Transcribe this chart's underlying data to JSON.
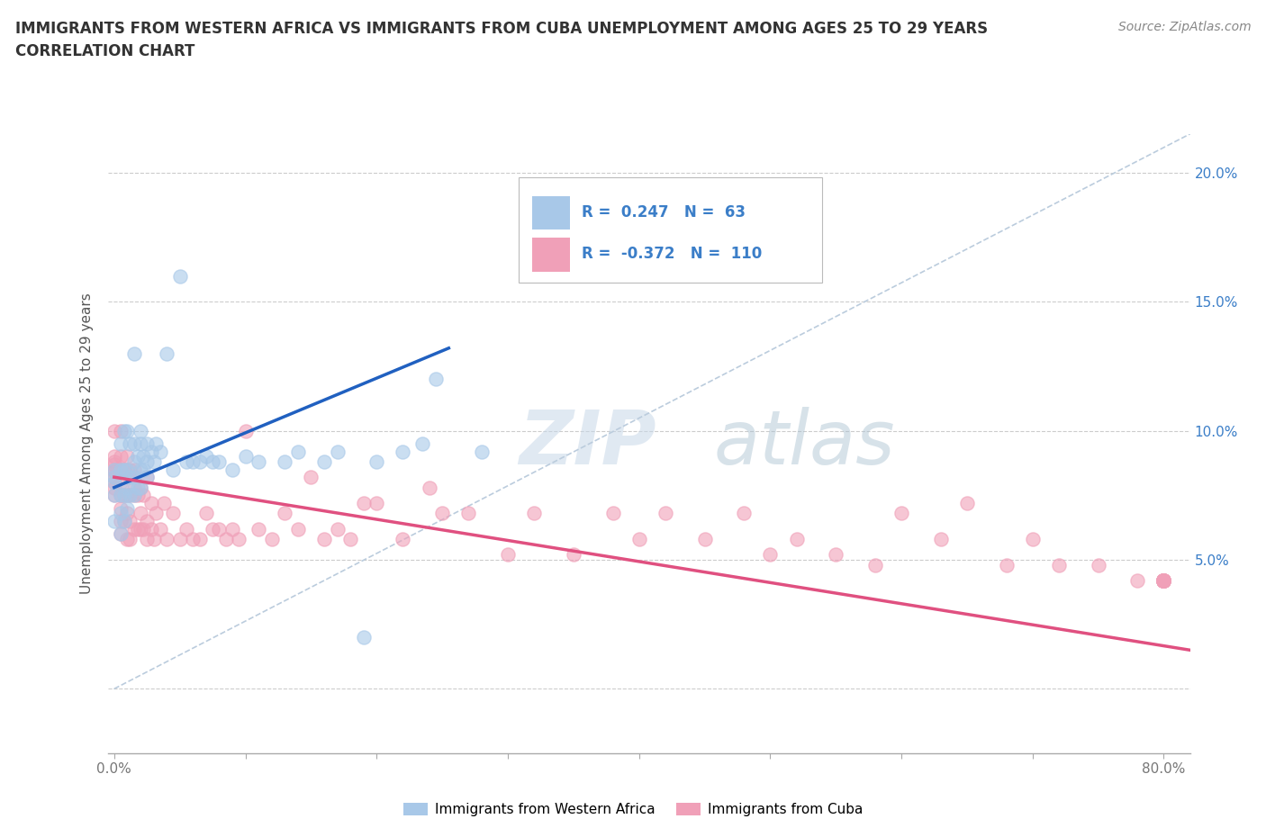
{
  "title_line1": "IMMIGRANTS FROM WESTERN AFRICA VS IMMIGRANTS FROM CUBA UNEMPLOYMENT AMONG AGES 25 TO 29 YEARS",
  "title_line2": "CORRELATION CHART",
  "source_text": "Source: ZipAtlas.com",
  "ylabel": "Unemployment Among Ages 25 to 29 years",
  "xlim": [
    -0.005,
    0.82
  ],
  "ylim": [
    -0.025,
    0.215
  ],
  "yticks": [
    0.0,
    0.05,
    0.1,
    0.15,
    0.2
  ],
  "ytick_labels_left": [
    "",
    "",
    "",
    "",
    ""
  ],
  "ytick_labels_right": [
    "",
    "5.0%",
    "10.0%",
    "15.0%",
    "20.0%"
  ],
  "xticks": [
    0.0,
    0.1,
    0.2,
    0.3,
    0.4,
    0.5,
    0.6,
    0.7,
    0.8
  ],
  "xtick_labels": [
    "0.0%",
    "",
    "",
    "",
    "",
    "",
    "",
    "",
    "80.0%"
  ],
  "blue_color": "#A8C8E8",
  "pink_color": "#F0A0B8",
  "blue_line_color": "#2060C0",
  "pink_line_color": "#E05080",
  "dashed_line_color": "#BBCCDD",
  "legend_R_blue": "0.247",
  "legend_N_blue": "63",
  "legend_R_pink": "-0.372",
  "legend_N_pink": "110",
  "legend_label_blue": "Immigrants from Western Africa",
  "legend_label_pink": "Immigrants from Cuba",
  "watermark_zip": "ZIP",
  "watermark_atlas": "atlas",
  "blue_trend_x": [
    0.0,
    0.255
  ],
  "blue_trend_y": [
    0.078,
    0.132
  ],
  "pink_trend_x": [
    0.0,
    0.82
  ],
  "pink_trend_y": [
    0.082,
    0.015
  ],
  "dashed_line_x": [
    0.0,
    0.82
  ],
  "dashed_line_y": [
    0.0,
    0.215
  ],
  "blue_scatter_x": [
    0.0,
    0.0,
    0.0,
    0.0,
    0.0,
    0.005,
    0.005,
    0.005,
    0.005,
    0.005,
    0.008,
    0.008,
    0.008,
    0.008,
    0.01,
    0.01,
    0.01,
    0.01,
    0.012,
    0.012,
    0.012,
    0.015,
    0.015,
    0.015,
    0.015,
    0.015,
    0.018,
    0.018,
    0.02,
    0.02,
    0.02,
    0.02,
    0.022,
    0.022,
    0.025,
    0.025,
    0.025,
    0.028,
    0.03,
    0.032,
    0.035,
    0.04,
    0.045,
    0.05,
    0.055,
    0.06,
    0.065,
    0.07,
    0.075,
    0.08,
    0.09,
    0.1,
    0.11,
    0.13,
    0.14,
    0.16,
    0.17,
    0.19,
    0.2,
    0.22,
    0.235,
    0.245,
    0.28
  ],
  "blue_scatter_y": [
    0.065,
    0.075,
    0.08,
    0.082,
    0.085,
    0.06,
    0.068,
    0.075,
    0.085,
    0.095,
    0.065,
    0.075,
    0.085,
    0.1,
    0.07,
    0.078,
    0.085,
    0.1,
    0.075,
    0.082,
    0.095,
    0.075,
    0.082,
    0.088,
    0.095,
    0.13,
    0.078,
    0.09,
    0.078,
    0.085,
    0.095,
    0.1,
    0.085,
    0.09,
    0.082,
    0.088,
    0.095,
    0.092,
    0.088,
    0.095,
    0.092,
    0.13,
    0.085,
    0.16,
    0.088,
    0.088,
    0.088,
    0.09,
    0.088,
    0.088,
    0.085,
    0.09,
    0.088,
    0.088,
    0.092,
    0.088,
    0.092,
    0.02,
    0.088,
    0.092,
    0.095,
    0.12,
    0.092
  ],
  "pink_scatter_x": [
    0.0,
    0.0,
    0.0,
    0.0,
    0.0,
    0.0,
    0.0,
    0.0,
    0.0,
    0.0,
    0.005,
    0.005,
    0.005,
    0.005,
    0.005,
    0.005,
    0.005,
    0.005,
    0.008,
    0.008,
    0.008,
    0.01,
    0.01,
    0.01,
    0.01,
    0.012,
    0.012,
    0.012,
    0.012,
    0.015,
    0.015,
    0.015,
    0.015,
    0.018,
    0.018,
    0.02,
    0.02,
    0.02,
    0.022,
    0.022,
    0.025,
    0.025,
    0.025,
    0.028,
    0.028,
    0.03,
    0.032,
    0.035,
    0.038,
    0.04,
    0.045,
    0.05,
    0.055,
    0.06,
    0.065,
    0.07,
    0.075,
    0.08,
    0.085,
    0.09,
    0.095,
    0.1,
    0.11,
    0.12,
    0.13,
    0.14,
    0.15,
    0.16,
    0.17,
    0.18,
    0.19,
    0.2,
    0.22,
    0.24,
    0.25,
    0.27,
    0.3,
    0.32,
    0.35,
    0.38,
    0.4,
    0.42,
    0.45,
    0.48,
    0.5,
    0.52,
    0.55,
    0.58,
    0.6,
    0.63,
    0.65,
    0.68,
    0.7,
    0.72,
    0.75,
    0.78,
    0.8,
    0.8,
    0.8,
    0.8,
    0.8,
    0.8,
    0.8,
    0.8,
    0.8,
    0.8,
    0.8,
    0.8,
    0.8,
    0.8
  ],
  "pink_scatter_y": [
    0.075,
    0.078,
    0.08,
    0.082,
    0.084,
    0.085,
    0.087,
    0.088,
    0.09,
    0.1,
    0.06,
    0.065,
    0.07,
    0.075,
    0.08,
    0.085,
    0.09,
    0.1,
    0.065,
    0.075,
    0.085,
    0.058,
    0.068,
    0.075,
    0.09,
    0.058,
    0.065,
    0.075,
    0.085,
    0.062,
    0.075,
    0.078,
    0.085,
    0.062,
    0.075,
    0.062,
    0.068,
    0.078,
    0.062,
    0.075,
    0.058,
    0.065,
    0.082,
    0.062,
    0.072,
    0.058,
    0.068,
    0.062,
    0.072,
    0.058,
    0.068,
    0.058,
    0.062,
    0.058,
    0.058,
    0.068,
    0.062,
    0.062,
    0.058,
    0.062,
    0.058,
    0.1,
    0.062,
    0.058,
    0.068,
    0.062,
    0.082,
    0.058,
    0.062,
    0.058,
    0.072,
    0.072,
    0.058,
    0.078,
    0.068,
    0.068,
    0.052,
    0.068,
    0.052,
    0.068,
    0.058,
    0.068,
    0.058,
    0.068,
    0.052,
    0.058,
    0.052,
    0.048,
    0.068,
    0.058,
    0.072,
    0.048,
    0.058,
    0.048,
    0.048,
    0.042,
    0.042,
    0.042,
    0.042,
    0.042,
    0.042,
    0.042,
    0.042,
    0.042,
    0.042,
    0.042,
    0.042,
    0.042,
    0.042,
    0.042
  ]
}
